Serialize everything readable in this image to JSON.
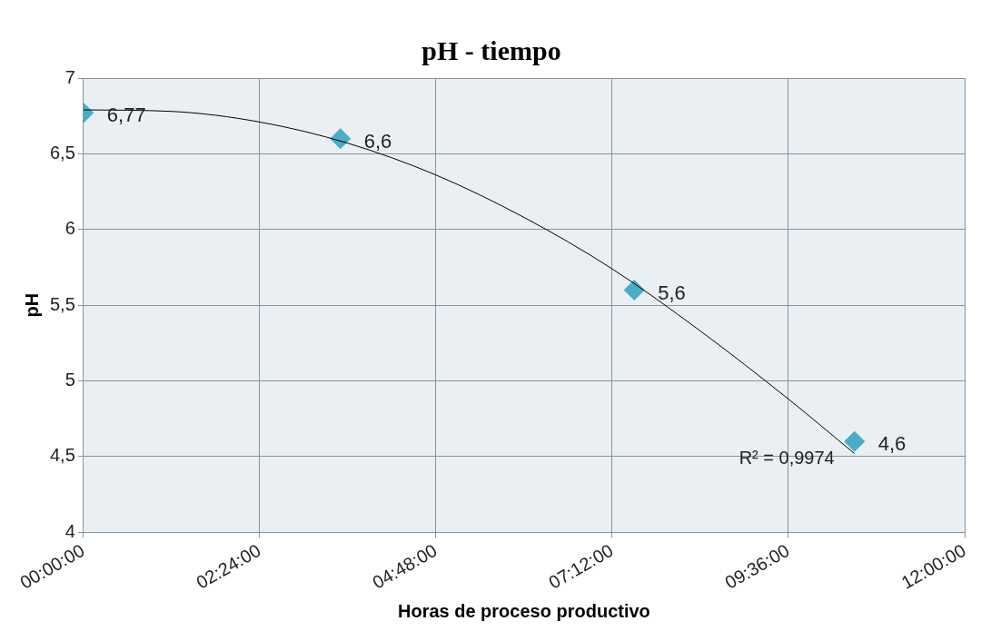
{
  "chart_data": {
    "type": "scatter",
    "title": "pH - tiempo",
    "xlabel": "Horas de proceso productivo",
    "ylabel": "pH",
    "xlim": [
      0,
      12
    ],
    "xticks": [
      {
        "value": 0,
        "label": "00:00:00"
      },
      {
        "value": 2.4,
        "label": "02:24:00"
      },
      {
        "value": 4.8,
        "label": "04:48:00"
      },
      {
        "value": 7.2,
        "label": "07:12:00"
      },
      {
        "value": 9.6,
        "label": "09:36:00"
      },
      {
        "value": 12,
        "label": "12:00:00"
      }
    ],
    "ylim": [
      4,
      7
    ],
    "yticks": [
      {
        "value": 4,
        "label": "4"
      },
      {
        "value": 4.5,
        "label": "4,5"
      },
      {
        "value": 5,
        "label": "5"
      },
      {
        "value": 5.5,
        "label": "5,5"
      },
      {
        "value": 6,
        "label": "6"
      },
      {
        "value": 6.5,
        "label": "6,5"
      },
      {
        "value": 7,
        "label": "7"
      }
    ],
    "grid": true,
    "legend": false,
    "marker": "diamond",
    "series": [
      {
        "type": "scatter",
        "color": "#4bacc6",
        "x": [
          0,
          3.5,
          7.5,
          10.5
        ],
        "values": [
          6.77,
          6.6,
          5.6,
          4.6
        ],
        "value_labels": [
          "6,77",
          "6,6",
          "5,6",
          "4,6"
        ]
      },
      {
        "type": "line",
        "color": "#000000",
        "marker": "none",
        "x": [
          0,
          1.2,
          2.4,
          3.6,
          4.8,
          6,
          7.2,
          8.4,
          9.6,
          10.5
        ],
        "values": [
          6.79,
          6.78,
          6.71,
          6.57,
          6.36,
          6.08,
          5.74,
          5.33,
          4.88,
          4.52
        ]
      }
    ],
    "annotations": [
      {
        "text": "R² = 0,9974",
        "x": 10.5,
        "y": 4.52
      }
    ]
  }
}
